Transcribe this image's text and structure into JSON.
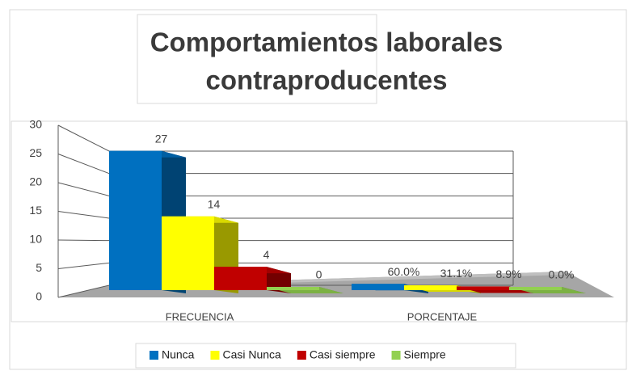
{
  "chart_data": {
    "type": "bar3d",
    "title": [
      "Comportamientos laborales",
      "contraproducentes"
    ],
    "categories": [
      "FRECUENCIA",
      "PORCENTAJE"
    ],
    "series": [
      {
        "name": "Nunca",
        "color": "#0070c0",
        "values": [
          27,
          0.6
        ],
        "value_labels": [
          "27",
          "60.0%"
        ]
      },
      {
        "name": "Casi Nunca",
        "color": "#ffff00",
        "values": [
          14,
          0.311
        ],
        "value_labels": [
          "14",
          "31.1%"
        ]
      },
      {
        "name": "Casi siempre",
        "color": "#c00000",
        "values": [
          4,
          0.089
        ],
        "value_labels": [
          "4",
          "8.9%"
        ]
      },
      {
        "name": "Siempre",
        "color": "#92d050",
        "values": [
          0,
          0
        ],
        "value_labels": [
          "0",
          "0.0%"
        ]
      }
    ],
    "ylim": [
      0,
      30
    ],
    "yticks": [
      0,
      5,
      10,
      15,
      20,
      25,
      30
    ],
    "grid": true,
    "legend": "bottom"
  }
}
